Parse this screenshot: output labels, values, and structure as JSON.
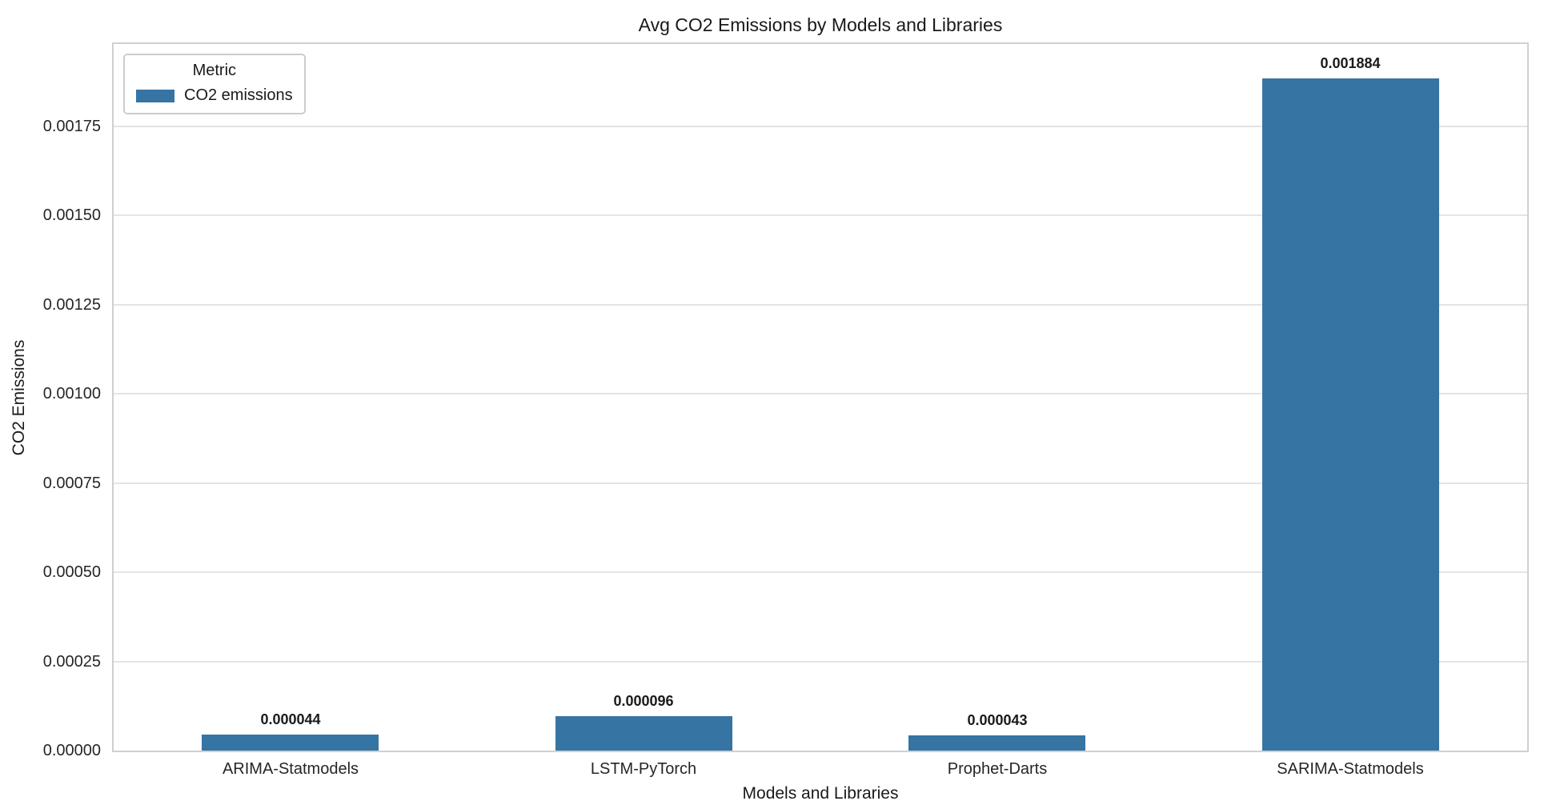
{
  "colors": {
    "bar": "#3674a3",
    "grid": "#e4e4e4",
    "frame": "#d0d0d0",
    "text": "#262626"
  },
  "chart_data": {
    "type": "bar",
    "title": "Avg CO2 Emissions by Models and Libraries",
    "xlabel": "Models and Libraries",
    "ylabel": "CO2 Emissions",
    "categories": [
      "ARIMA-Statmodels",
      "LSTM-PyTorch",
      "Prophet-Darts",
      "SARIMA-Statmodels"
    ],
    "values": [
      4.4e-05,
      9.6e-05,
      4.3e-05,
      0.001884
    ],
    "bar_value_labels": [
      "0.000044",
      "0.000096",
      "0.000043",
      "0.001884"
    ],
    "yticks": [
      0,
      0.00025,
      0.0005,
      0.00075,
      0.001,
      0.00125,
      0.0015,
      0.00175
    ],
    "ytick_labels": [
      "0.00000",
      "0.00025",
      "0.00050",
      "0.00075",
      "0.00100",
      "0.00125",
      "0.00150",
      "0.00175"
    ],
    "ylim": [
      0,
      0.00198
    ],
    "grid": true,
    "bar_width_fraction": 0.5,
    "legend": {
      "title": "Metric",
      "position": "upper-left",
      "entries": [
        {
          "label": "CO2 emissions",
          "color": "#3674a3"
        }
      ]
    }
  }
}
